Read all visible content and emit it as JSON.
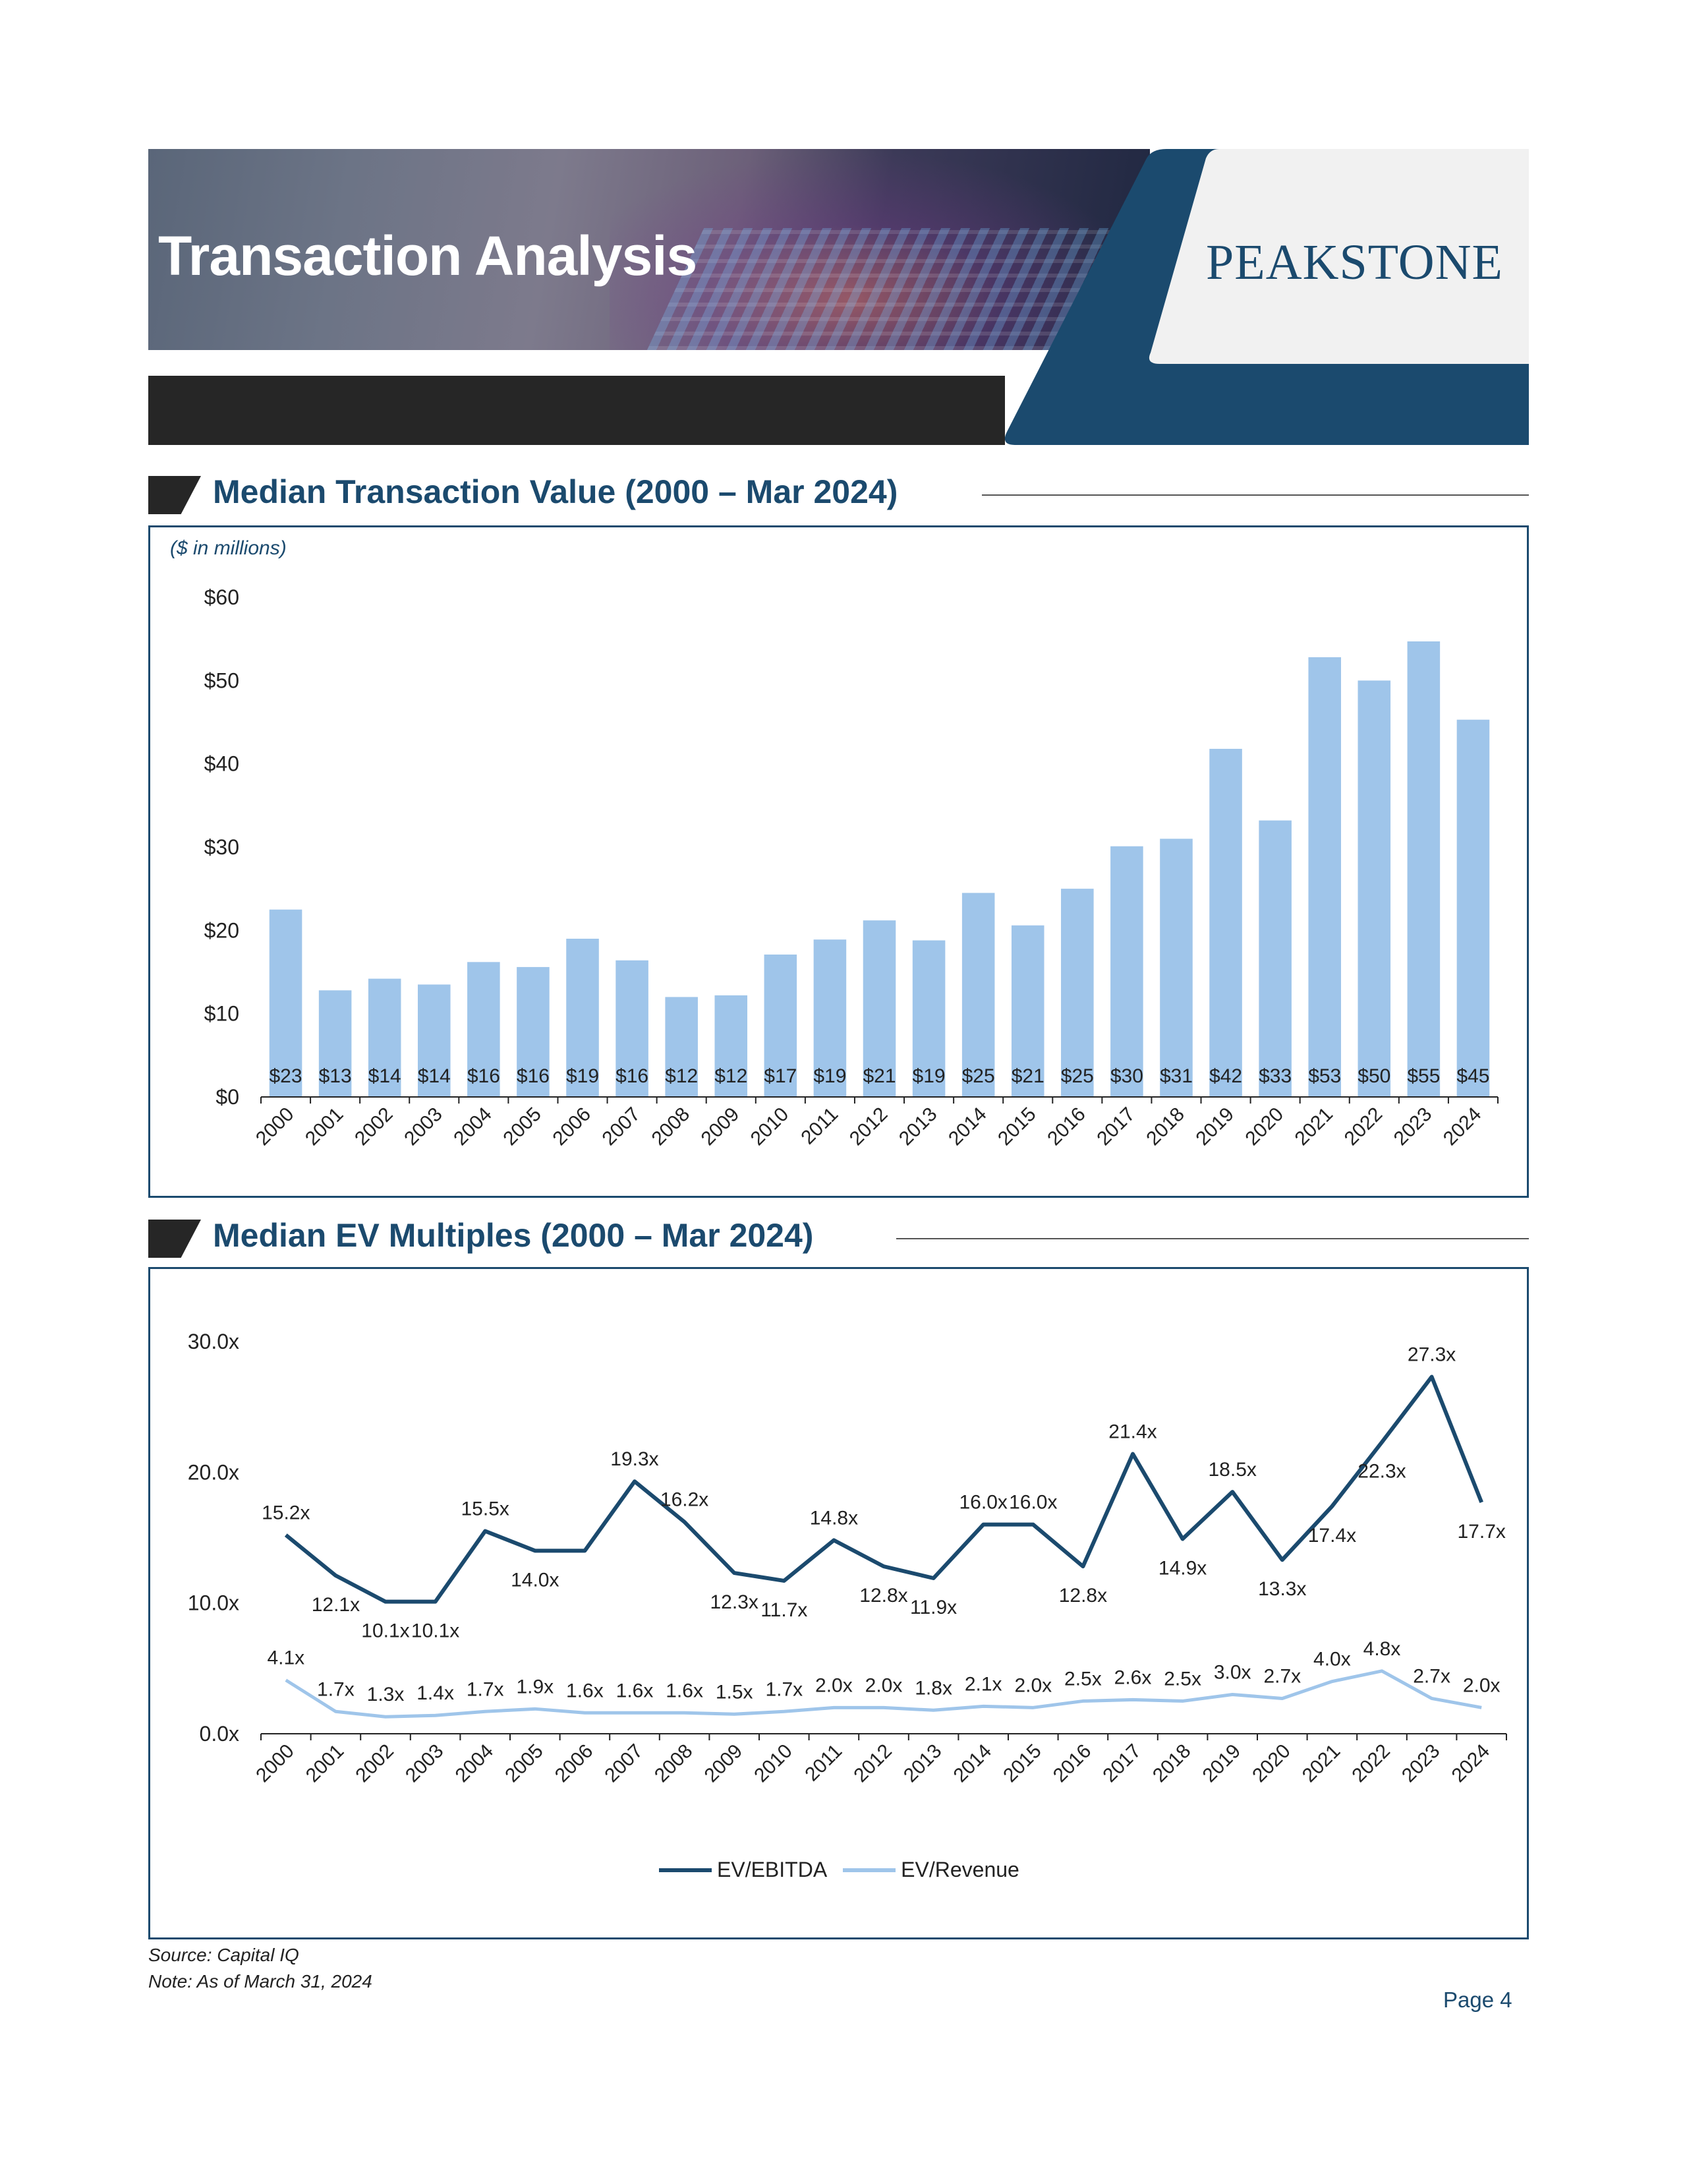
{
  "header": {
    "title": "Transaction Analysis",
    "logo_text": "PEAKSTONE",
    "accent_color": "#1b4a6e"
  },
  "section1": {
    "title": "Median Transaction Value (2000 – Mar 2024)"
  },
  "section2": {
    "title": "Median EV Multiples (2000 – Mar 2024)"
  },
  "chart_data": [
    {
      "type": "bar",
      "title": "Median Transaction Value (2000 – Mar 2024)",
      "units_label": "($ in millions)",
      "categories": [
        "2000",
        "2001",
        "2002",
        "2003",
        "2004",
        "2005",
        "2006",
        "2007",
        "2008",
        "2009",
        "2010",
        "2011",
        "2012",
        "2013",
        "2014",
        "2015",
        "2016",
        "2017",
        "2018",
        "2019",
        "2020",
        "2021",
        "2022",
        "2023",
        "2024"
      ],
      "values": [
        22.5,
        12.8,
        14.2,
        13.5,
        16.2,
        15.6,
        19.0,
        16.4,
        12.0,
        12.2,
        17.1,
        18.9,
        21.2,
        18.8,
        24.5,
        20.6,
        25.0,
        30.1,
        31.0,
        41.8,
        33.2,
        52.8,
        50.0,
        54.7,
        45.3
      ],
      "data_labels": [
        "$23",
        "$13",
        "$14",
        "$14",
        "$16",
        "$16",
        "$19",
        "$16",
        "$12",
        "$12",
        "$17",
        "$19",
        "$21",
        "$19",
        "$25",
        "$21",
        "$25",
        "$30",
        "$31",
        "$42",
        "$33",
        "$53",
        "$50",
        "$55",
        "$45"
      ],
      "y_ticks": [
        "$0",
        "$10",
        "$20",
        "$30",
        "$40",
        "$50",
        "$60"
      ],
      "ylim": [
        0,
        60
      ],
      "bar_color": "#9fc5ea",
      "grid": false
    },
    {
      "type": "line",
      "title": "Median EV Multiples (2000 – Mar 2024)",
      "categories": [
        "2000",
        "2001",
        "2002",
        "2003",
        "2004",
        "2005",
        "2006",
        "2007",
        "2008",
        "2009",
        "2010",
        "2011",
        "2012",
        "2013",
        "2014",
        "2015",
        "2016",
        "2017",
        "2018",
        "2019",
        "2020",
        "2021",
        "2022",
        "2023",
        "2024"
      ],
      "series": [
        {
          "name": "EV/EBITDA",
          "color": "#1b4a6e",
          "values": [
            15.2,
            12.1,
            10.1,
            10.1,
            15.5,
            14.0,
            14.0,
            19.3,
            16.2,
            12.3,
            11.7,
            14.8,
            12.8,
            11.9,
            16.0,
            16.0,
            12.8,
            21.4,
            14.9,
            18.5,
            13.3,
            17.4,
            22.3,
            27.3,
            17.7
          ],
          "labels": [
            "15.2x",
            "12.1x",
            "10.1x",
            "10.1x",
            "15.5x",
            "14.0x",
            "",
            "19.3x",
            "16.2x",
            "12.3x",
            "11.7x",
            "14.8x",
            "12.8x",
            "11.9x",
            "16.0x",
            "16.0x",
            "12.8x",
            "21.4x",
            "14.9x",
            "18.5x",
            "13.3x",
            "17.4x",
            "22.3x",
            "27.3x",
            "17.7x"
          ]
        },
        {
          "name": "EV/Revenue",
          "color": "#9fc5ea",
          "values": [
            4.1,
            1.7,
            1.3,
            1.4,
            1.7,
            1.9,
            1.6,
            1.6,
            1.6,
            1.5,
            1.7,
            2.0,
            2.0,
            1.8,
            2.1,
            2.0,
            2.5,
            2.6,
            2.5,
            3.0,
            2.7,
            4.0,
            4.8,
            2.7,
            2.0
          ],
          "labels": [
            "4.1x",
            "1.7x",
            "1.3x",
            "1.4x",
            "1.7x",
            "1.9x",
            "1.6x",
            "1.6x",
            "1.6x",
            "1.5x",
            "1.7x",
            "2.0x",
            "2.0x",
            "1.8x",
            "2.1x",
            "2.0x",
            "2.5x",
            "2.6x",
            "2.5x",
            "3.0x",
            "2.7x",
            "4.0x",
            "4.8x",
            "2.7x",
            "2.0x"
          ]
        }
      ],
      "y_ticks": [
        "0.0x",
        "10.0x",
        "20.0x",
        "30.0x"
      ],
      "ylim": [
        0,
        30
      ],
      "legend_position": "bottom-center",
      "grid": false
    }
  ],
  "footer": {
    "source": "Source: Capital IQ",
    "note": "Note: As of March 31, 2024",
    "page": "Page 4"
  }
}
